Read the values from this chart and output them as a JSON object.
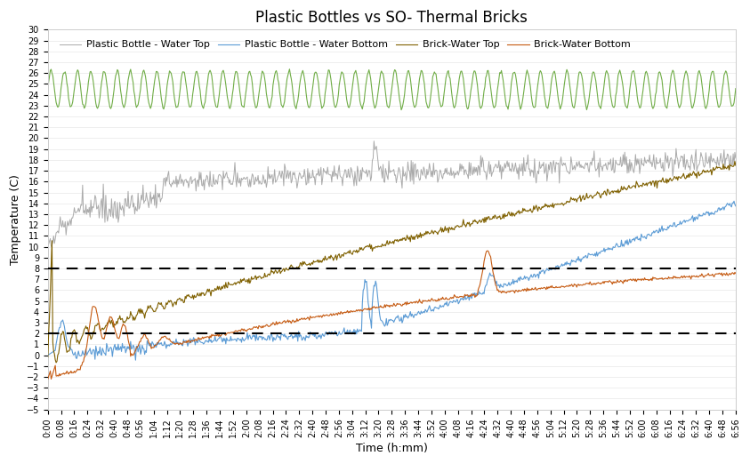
{
  "title": "Plastic Bottles vs SO- Thermal Bricks",
  "xlabel": "Time (h:mm)",
  "ylabel": "Temperature (C)",
  "ylim": [
    -5,
    30
  ],
  "yticks": [
    -5,
    -4,
    -3,
    -2,
    -1,
    0,
    1,
    2,
    3,
    4,
    5,
    6,
    7,
    8,
    9,
    10,
    11,
    12,
    13,
    14,
    15,
    16,
    17,
    18,
    19,
    20,
    21,
    22,
    23,
    24,
    25,
    26,
    27,
    28,
    29,
    30
  ],
  "hlines": [
    8.0,
    2.0
  ],
  "total_minutes": 416,
  "xtick_interval_minutes": 8,
  "colors": {
    "plastic_top": "#aaaaaa",
    "plastic_bottom": "#5b9bd5",
    "brick_top": "#7f6000",
    "brick_bottom": "#c55a11",
    "ambient": "#70ad47"
  },
  "legend_labels": [
    "Plastic Bottle - Water Top",
    "Plastic Bottle - Water Bottom",
    "Brick-Water Top",
    "Brick-Water Bottom"
  ],
  "title_fontsize": 12,
  "axis_fontsize": 9,
  "legend_fontsize": 8,
  "tick_fontsize": 7
}
